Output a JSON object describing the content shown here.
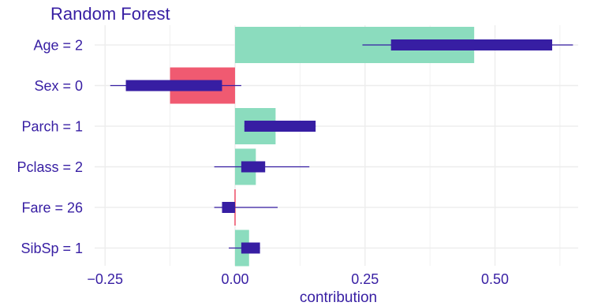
{
  "chart_data": {
    "type": "bar",
    "title": "Random Forest",
    "xlabel": "contribution",
    "ylabel": "",
    "xlim": [
      -0.27,
      0.66
    ],
    "x_ticks": [
      -0.25,
      0.0,
      0.25,
      0.5
    ],
    "x_tick_labels": [
      "−0.25",
      "0.00",
      "0.25",
      "0.50"
    ],
    "grid": true,
    "categories": [
      "Age = 2",
      "Sex = 0",
      "Parch = 1",
      "Pclass = 2",
      "Fare = 26",
      "SibSp = 1"
    ],
    "values": [
      0.46,
      -0.125,
      0.078,
      0.04,
      -0.002,
      0.027
    ],
    "boxplots": [
      {
        "category": "Age = 2",
        "min": 0.245,
        "q1": 0.3,
        "q3": 0.61,
        "max": 0.65
      },
      {
        "category": "Sex = 0",
        "min": -0.24,
        "q1": -0.21,
        "q3": -0.025,
        "max": 0.012
      },
      {
        "category": "Parch = 1",
        "min": 0.018,
        "q1": 0.018,
        "q3": 0.155,
        "max": 0.155
      },
      {
        "category": "Pclass = 2",
        "min": -0.04,
        "q1": 0.012,
        "q3": 0.058,
        "max": 0.143
      },
      {
        "category": "Fare = 26",
        "min": -0.04,
        "q1": -0.025,
        "q3": 0.0,
        "max": 0.082
      },
      {
        "category": "SibSp = 1",
        "min": -0.012,
        "q1": 0.012,
        "q3": 0.048,
        "max": 0.048
      }
    ],
    "colors": {
      "positive": "#8bdcbe",
      "negative": "#f05a71",
      "box": "#371ea3",
      "text": "#371ea3",
      "grid": "#ededed"
    }
  }
}
